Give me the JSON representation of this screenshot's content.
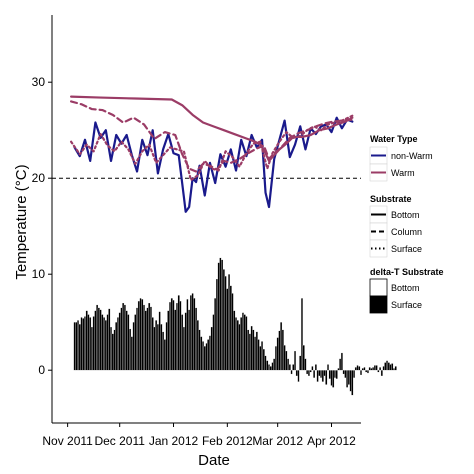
{
  "chart_data": {
    "type": "line",
    "title": "",
    "xlabel": "Date",
    "ylabel": "Temperature (°C)",
    "x_tick_labels": [
      "Nov 2011",
      "Dec 2011",
      "Jan 2012",
      "Feb 2012",
      "Mar 2012",
      "Apr 2012"
    ],
    "x_ticks": [
      "2011-11-01",
      "2011-12-01",
      "2012-01-01",
      "2012-02-01",
      "2012-03-01",
      "2012-04-01"
    ],
    "xlim": [
      "2011-10-23",
      "2012-04-18"
    ],
    "y_ticks": [
      0,
      10,
      20,
      30
    ],
    "ylim": [
      -5.5,
      37
    ],
    "grid": false,
    "reference_line": {
      "y": 20,
      "style": "dashed"
    },
    "series": [
      {
        "name": "non-Warm",
        "substrate": "Bottom",
        "x": [
          "2011-11-05",
          "2011-11-08",
          "2011-11-11",
          "2011-11-14",
          "2011-11-17",
          "2011-11-20",
          "2011-11-23",
          "2011-11-26",
          "2011-11-29",
          "2011-12-02",
          "2011-12-05",
          "2011-12-08",
          "2011-12-11",
          "2011-12-14",
          "2011-12-17",
          "2011-12-20",
          "2011-12-23",
          "2011-12-26",
          "2011-12-29",
          "2012-01-01",
          "2012-01-04",
          "2012-01-07",
          "2012-01-08",
          "2012-01-10",
          "2012-01-12",
          "2012-01-14",
          "2012-01-16",
          "2012-01-19",
          "2012-01-22",
          "2012-01-25",
          "2012-01-28",
          "2012-01-31",
          "2012-02-03",
          "2012-02-06",
          "2012-02-09",
          "2012-02-12",
          "2012-02-15",
          "2012-02-18",
          "2012-02-21",
          "2012-02-23",
          "2012-02-25",
          "2012-02-28",
          "2012-03-02",
          "2012-03-05",
          "2012-03-08",
          "2012-03-11",
          "2012-03-14",
          "2012-03-17",
          "2012-03-20",
          "2012-03-23",
          "2012-03-26",
          "2012-03-29",
          "2012-04-01",
          "2012-04-04",
          "2012-04-07",
          "2012-04-10",
          "2012-04-13"
        ],
        "y": [
          23.2,
          22.3,
          24.0,
          21.8,
          25.8,
          24.2,
          25.0,
          21.8,
          24.5,
          23.6,
          24.5,
          22.4,
          20.7,
          24.0,
          22.4,
          25.0,
          20.5,
          23.0,
          24.6,
          22.6,
          22.4,
          18.0,
          16.5,
          17.0,
          20.0,
          19.6,
          21.3,
          18.2,
          21.6,
          19.5,
          22.5,
          21.2,
          23.0,
          20.8,
          24.0,
          22.3,
          24.5,
          23.2,
          24.0,
          18.5,
          17.0,
          22.0,
          24.0,
          26.0,
          22.2,
          23.5,
          25.4,
          23.0,
          25.2,
          24.6,
          25.4,
          25.6,
          24.8,
          26.3,
          25.2,
          26.1,
          25.9
        ]
      },
      {
        "name": "Warm",
        "substrate": "Bottom",
        "x": [
          "2011-11-03",
          "2011-11-20",
          "2011-12-10",
          "2011-12-31",
          "2012-01-06",
          "2012-01-12",
          "2012-01-18",
          "2012-01-24",
          "2012-01-30",
          "2012-02-05",
          "2012-02-11",
          "2012-02-17",
          "2012-02-20",
          "2012-02-23",
          "2012-02-25",
          "2012-02-28",
          "2012-03-02",
          "2012-03-06",
          "2012-03-10",
          "2012-03-15",
          "2012-03-20",
          "2012-03-25",
          "2012-03-30",
          "2012-04-04",
          "2012-04-09",
          "2012-04-13"
        ],
        "y": [
          28.5,
          28.4,
          28.3,
          28.2,
          27.6,
          26.6,
          25.8,
          25.4,
          25.0,
          24.6,
          24.2,
          23.8,
          23.5,
          22.6,
          21.8,
          22.4,
          23.0,
          23.6,
          24.3,
          24.3,
          24.5,
          25.0,
          25.2,
          25.6,
          25.9,
          26.3
        ]
      },
      {
        "name": "Warm",
        "substrate": "Column",
        "x": [
          "2011-11-03",
          "2011-11-09",
          "2011-11-15",
          "2011-11-21",
          "2011-11-27",
          "2011-12-03",
          "2011-12-09",
          "2011-12-15",
          "2011-12-21",
          "2011-12-27",
          "2012-01-02",
          "2012-01-06",
          "2012-01-10",
          "2012-01-14",
          "2012-01-18",
          "2012-01-22",
          "2012-01-26",
          "2012-01-30",
          "2012-02-03",
          "2012-02-08",
          "2012-02-13",
          "2012-02-18",
          "2012-02-22",
          "2012-02-25",
          "2012-02-28",
          "2012-03-03",
          "2012-03-08",
          "2012-03-13",
          "2012-03-18",
          "2012-03-23",
          "2012-03-28",
          "2012-04-02",
          "2012-04-07",
          "2012-04-13"
        ],
        "y": [
          28.0,
          27.7,
          27.2,
          27.1,
          26.6,
          25.8,
          26.3,
          25.6,
          24.1,
          24.8,
          24.5,
          22.5,
          21.0,
          20.7,
          21.5,
          21.3,
          20.9,
          21.8,
          21.6,
          22.0,
          22.6,
          23.1,
          23.4,
          22.0,
          22.6,
          23.2,
          24.2,
          24.7,
          25.0,
          25.4,
          25.7,
          25.9,
          26.0,
          26.1
        ]
      },
      {
        "name": "Warm",
        "substrate": "Surface",
        "x": [
          "2011-11-03",
          "2011-11-08",
          "2011-11-12",
          "2011-11-16",
          "2011-11-20",
          "2011-11-24",
          "2011-11-28",
          "2011-12-02",
          "2011-12-06",
          "2011-12-10",
          "2011-12-14",
          "2011-12-18",
          "2011-12-22",
          "2011-12-26",
          "2011-12-30",
          "2012-01-03",
          "2012-01-07",
          "2012-01-11",
          "2012-01-15",
          "2012-01-19",
          "2012-01-23",
          "2012-01-27",
          "2012-01-31",
          "2012-02-04",
          "2012-02-08",
          "2012-02-12",
          "2012-02-16",
          "2012-02-20",
          "2012-02-24",
          "2012-02-27",
          "2012-03-02",
          "2012-03-06",
          "2012-03-10",
          "2012-03-14",
          "2012-03-18",
          "2012-03-22",
          "2012-03-26",
          "2012-03-30",
          "2012-04-03",
          "2012-04-07",
          "2012-04-13"
        ],
        "y": [
          23.8,
          22.5,
          23.5,
          22.8,
          24.6,
          23.4,
          22.8,
          23.8,
          23.0,
          21.5,
          22.8,
          23.5,
          21.6,
          22.4,
          23.2,
          23.0,
          22.8,
          19.8,
          20.3,
          21.8,
          21.0,
          20.8,
          22.8,
          22.2,
          21.2,
          22.6,
          23.6,
          23.8,
          21.0,
          22.6,
          23.8,
          24.8,
          24.2,
          24.4,
          25.0,
          25.4,
          25.0,
          25.6,
          25.8,
          26.0,
          26.5
        ]
      }
    ],
    "delta_T": {
      "name": "Surface",
      "start": "2011-11-05",
      "step_days": 1,
      "values": [
        5,
        5,
        5.2,
        4.8,
        5.5,
        5.4,
        5.6,
        6.2,
        5.8,
        5.5,
        4.5,
        5.6,
        6.2,
        6.8,
        6.5,
        6.3,
        5.8,
        5.5,
        5.2,
        5.8,
        6.4,
        4.5,
        3.8,
        4.2,
        5,
        5.5,
        6,
        6.5,
        7,
        6.8,
        6.2,
        5.8,
        4.3,
        3.5,
        5,
        5.8,
        6.5,
        7.2,
        7.5,
        7.4,
        6.8,
        6.2,
        6.5,
        7,
        6.6,
        5.5,
        4.5,
        5.2,
        4.8,
        6.1,
        4.8,
        4,
        3.2,
        5,
        6.2,
        7.1,
        7.5,
        7.3,
        6.3,
        7,
        7.8,
        7.2,
        5.8,
        4.5,
        6,
        7.4,
        6.3,
        7.8,
        8,
        7.5,
        6.5,
        5.2,
        4.2,
        3.5,
        3,
        2.5,
        2.8,
        3.2,
        3.6,
        4.5,
        5.8,
        7.5,
        9.5,
        11.2,
        11.7,
        11.5,
        10.5,
        9.8,
        8.5,
        10,
        8.8,
        8,
        6.2,
        5.5,
        5.2,
        4.8,
        5.5,
        6,
        5.8,
        5.6,
        4.2,
        3.8,
        4.6,
        4.2,
        3.5,
        4,
        3.2,
        2.5,
        3,
        2.2,
        1.5,
        1,
        0.6,
        0.4,
        0.8,
        1.2,
        2.5,
        3.4,
        4.1,
        5,
        4.2,
        2.6,
        2,
        1.2,
        0.6,
        -0.4,
        0.6,
        2,
        -0.6,
        -1.2,
        1.5,
        7.5,
        2.6,
        1.2,
        -0.4,
        -0.6,
        -0.2,
        0.4,
        -0.8,
        0.6,
        -1.2,
        -0.6,
        -0.8,
        -1.2,
        -0.6,
        -1.5,
        0.6,
        -0.9,
        -1.6,
        -1.8,
        -0.8,
        -0.9,
        0.2,
        1.2,
        1.8,
        -0.4,
        -0.8,
        -1.8,
        -1.5,
        -2.2,
        -2.6,
        -0.8,
        0.3,
        0.5,
        0.4,
        -0.5,
        0.2,
        0.3,
        -0.2,
        -0.3,
        0.3,
        0.2,
        0.3,
        0.5,
        0.5,
        -0.2,
        0.3,
        -0.6,
        0.4,
        0.8,
        1,
        0.8,
        0.6,
        0.7,
        0.2,
        0.4
      ]
    },
    "colors": {
      "non_warm": "#1a1a8c",
      "warm": "#9b3c66",
      "bars": "#000000",
      "reference": "#000000"
    }
  },
  "legend": {
    "water_type": {
      "title": "Water Type",
      "items": [
        "non-Warm",
        "Warm"
      ]
    },
    "substrate": {
      "title": "Substrate",
      "items": [
        "Bottom",
        "Column",
        "Surface"
      ]
    },
    "delta_t": {
      "title": "delta-T Substrate",
      "items": [
        "Bottom",
        "Surface"
      ]
    }
  }
}
